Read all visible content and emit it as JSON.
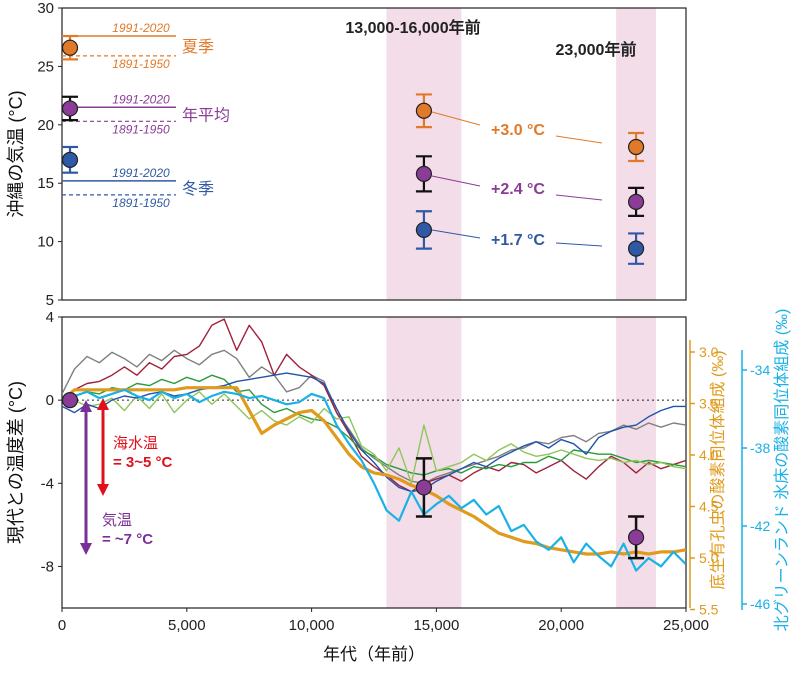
{
  "colors": {
    "summer": "#e07a2a",
    "annual": "#8a3c96",
    "winter": "#2f59a6",
    "shade": "#f3dde8",
    "gold": "#e09a1c",
    "cyan": "#1ab1e6",
    "red": "#e0101c",
    "purple_arrow": "#7a2f96"
  },
  "chart_data": [
    {
      "type": "scatter",
      "ylabel": "沖縄の気温 (°C)",
      "ylim": [
        5,
        30
      ],
      "yticks": [
        "5",
        "10",
        "15",
        "20",
        "25",
        "30"
      ],
      "shaded_periods": [
        {
          "label": "13,000-16,000年前",
          "x_range": [
            13000,
            16000
          ]
        },
        {
          "label": "23,000年前",
          "x_range": [
            22200,
            23800
          ]
        }
      ],
      "reference_lines": [
        {
          "season": "夏季",
          "y_1991_2020": 27.6,
          "y_1891_1950": 25.9
        },
        {
          "season": "年平均",
          "y_1991_2020": 21.5,
          "y_1891_1950": 20.3
        },
        {
          "season": "冬季",
          "y_1991_2020": 15.2,
          "y_1891_1950": 14.0
        }
      ],
      "period_labels": {
        "recent": "1991-2020",
        "old": "1891-1950"
      },
      "series": [
        {
          "name": "夏季",
          "color_key": "summer",
          "points": [
            {
              "x": 0,
              "y": 26.6,
              "err": 1.0
            },
            {
              "x": 14500,
              "y": 21.2,
              "err": 1.4
            },
            {
              "x": 23000,
              "y": 18.1,
              "err": 1.2
            }
          ]
        },
        {
          "name": "年平均",
          "color_key": "annual",
          "points": [
            {
              "x": 0,
              "y": 21.4,
              "err": 1.0
            },
            {
              "x": 14500,
              "y": 15.8,
              "err": 1.5
            },
            {
              "x": 23000,
              "y": 13.4,
              "err": 1.2
            }
          ]
        },
        {
          "name": "冬季",
          "color_key": "winter",
          "points": [
            {
              "x": 0,
              "y": 17.0,
              "err": 1.1
            },
            {
              "x": 14500,
              "y": 11.0,
              "err": 1.6
            },
            {
              "x": 23000,
              "y": 9.4,
              "err": 1.3
            }
          ]
        }
      ],
      "annotations": [
        {
          "text": "+3.0 °C",
          "color_key": "summer"
        },
        {
          "text": "+2.4 °C",
          "color_key": "annual"
        },
        {
          "text": "+1.7 °C",
          "color_key": "winter"
        }
      ]
    },
    {
      "type": "line",
      "xlabel": "年代（年前）",
      "ylabel": "現代との温度差 (°C)",
      "xlim": [
        0,
        25000
      ],
      "ylim": [
        -10,
        4
      ],
      "xticks": [
        "0",
        "5,000",
        "10,000",
        "15,000",
        "20,000",
        "25,000"
      ],
      "yticks": [
        "4",
        "0",
        "-4",
        "-8"
      ],
      "right_axis_1": {
        "label": "底生有孔虫の酸素同位体組成 (‰)",
        "ticks": [
          "3.0",
          "3.5",
          "4.0",
          "4.5",
          "5.0",
          "5.5"
        ]
      },
      "right_axis_2": {
        "label": "北グリーンランド 氷床の酸素同位体組成 (‰)",
        "ticks": [
          "-34",
          "-38",
          "-42",
          "-46"
        ]
      },
      "series": [
        {
          "name": "",
          "color": "#808080",
          "x": [
            0,
            500,
            1000,
            1500,
            2000,
            2500,
            3000,
            3500,
            4000,
            4500,
            5000,
            5500,
            6000,
            6500,
            7000,
            7500,
            8000,
            8500,
            9000,
            9500,
            10000,
            10500,
            11000,
            11500,
            12000,
            12500,
            13000,
            13500,
            14000,
            14500,
            15000,
            15500,
            16000,
            16500,
            17000,
            17500,
            18000,
            18500,
            19000,
            19500,
            20000,
            20500,
            21000,
            21500,
            22000,
            22500,
            23000,
            23500,
            24000,
            24500,
            25000
          ],
          "y": [
            0.3,
            1.5,
            2.1,
            1.8,
            2.3,
            2.0,
            1.6,
            2.2,
            1.9,
            2.4,
            2.0,
            1.7,
            2.2,
            2.4,
            2.0,
            1.1,
            1.6,
            1.2,
            0.4,
            0.6,
            1.2,
            0.9,
            -0.6,
            -1.4,
            -2.3,
            -2.8,
            -3.2,
            -3.6,
            -3.9,
            -4.0,
            -3.7,
            -3.5,
            -3.3,
            -3.1,
            -2.9,
            -2.7,
            -2.4,
            -2.3,
            -2.0,
            -2.1,
            -1.8,
            -1.7,
            -2.0,
            -1.6,
            -1.5,
            -1.2,
            -1.4,
            -1.1,
            -1.3,
            -1.1,
            -1.2
          ]
        },
        {
          "name": "",
          "color": "#a0213c",
          "x": [
            0,
            500,
            1000,
            1500,
            2000,
            2500,
            3000,
            3500,
            4000,
            4500,
            5000,
            5500,
            6000,
            6500,
            7000,
            7500,
            8000,
            8500,
            9000,
            9500,
            10000,
            10500,
            11000,
            11500,
            12000,
            12500,
            13000,
            13500,
            14000,
            14500,
            15000,
            15500,
            16000,
            16500,
            17000,
            17500,
            18000,
            18500,
            19000,
            19500,
            20000,
            20500,
            21000,
            21500,
            22000,
            22500,
            23000,
            23500,
            24000,
            24500,
            25000
          ],
          "y": [
            0.0,
            0.5,
            0.8,
            0.9,
            1.2,
            1.6,
            1.2,
            1.8,
            1.5,
            2.1,
            2.2,
            2.6,
            3.6,
            3.9,
            2.4,
            3.6,
            2.8,
            1.2,
            2.2,
            1.6,
            1.2,
            0.7,
            -0.6,
            -1.6,
            -2.7,
            -3.2,
            -3.6,
            -4.1,
            -4.4,
            -4.0,
            -3.8,
            -3.6,
            -3.9,
            -3.5,
            -3.2,
            -3.4,
            -3.0,
            -3.1,
            -3.5,
            -3.2,
            -2.9,
            -3.4,
            -3.8,
            -3.2,
            -2.7,
            -3.0,
            -3.5,
            -3.0,
            -3.3,
            -3.1,
            -2.9
          ]
        },
        {
          "name": "",
          "color": "#2a9a3c",
          "x": [
            0,
            500,
            1000,
            1500,
            2000,
            2500,
            3000,
            3500,
            4000,
            4500,
            5000,
            5500,
            6000,
            6500,
            7000,
            7500,
            8000,
            8500,
            9000,
            9500,
            10000,
            10500,
            11000,
            11500,
            12000,
            12500,
            13000,
            13500,
            14000,
            14500,
            15000,
            15500,
            16000,
            16500,
            17000,
            17500,
            18000,
            18500,
            19000,
            19500,
            20000,
            20500,
            21000,
            21500,
            22000,
            22500,
            23000,
            23500,
            24000,
            24500,
            25000
          ],
          "y": [
            0.0,
            0.2,
            0.4,
            0.3,
            0.6,
            0.5,
            0.8,
            0.7,
            1.0,
            0.8,
            1.1,
            0.9,
            1.2,
            1.0,
            0.4,
            0.5,
            -0.2,
            -0.6,
            -0.4,
            -0.7,
            -0.9,
            -1.0,
            -1.3,
            -1.8,
            -2.4,
            -2.7,
            -3.1,
            -3.3,
            -3.5,
            -3.6,
            -3.4,
            -3.3,
            -3.5,
            -3.2,
            -3.3,
            -3.1,
            -3.2,
            -3.0,
            -3.0,
            -2.7,
            -2.9,
            -2.4,
            -2.5,
            -2.6,
            -2.6,
            -2.8,
            -3.0,
            -2.9,
            -3.0,
            -3.1,
            -3.2
          ]
        },
        {
          "name": "",
          "color": "#8fc65a",
          "x": [
            0,
            500,
            1000,
            1500,
            2000,
            2500,
            3000,
            3500,
            4000,
            4500,
            5000,
            5500,
            6000,
            6500,
            7000,
            7500,
            8000,
            8500,
            9000,
            9500,
            10000,
            10500,
            11000,
            11500,
            12000,
            12500,
            13000,
            13500,
            14000,
            14500,
            15000,
            15500,
            16000,
            16500,
            17000,
            17500,
            18000,
            18500,
            19000,
            19500,
            20000,
            20500,
            21000,
            21500,
            22000,
            22500,
            23000,
            23500,
            24000,
            24500,
            25000
          ],
          "y": [
            0.0,
            0.0,
            -0.3,
            -0.2,
            0.1,
            -0.5,
            0.2,
            -0.4,
            0.3,
            -0.6,
            0.0,
            0.4,
            -0.2,
            0.3,
            -0.3,
            -0.9,
            -0.5,
            -1.0,
            -1.2,
            -0.8,
            -1.1,
            -0.4,
            -0.9,
            -0.8,
            -2.2,
            -2.6,
            -3.4,
            -2.3,
            -4.0,
            -1.2,
            -3.4,
            -3.2,
            -3.0,
            -2.6,
            -2.9,
            -2.4,
            -2.1,
            -2.5,
            -2.7,
            -2.6,
            -2.4,
            -2.6,
            -2.8,
            -2.9,
            -2.8,
            -3.0,
            -2.9,
            -3.1,
            -3.0,
            -3.2,
            -3.3
          ]
        },
        {
          "name": "",
          "color": "#1f55a8",
          "x": [
            0,
            500,
            1000,
            1500,
            2000,
            2500,
            3000,
            3500,
            4000,
            4500,
            5000,
            5500,
            6000,
            6500,
            7000,
            7500,
            8000,
            8500,
            9000,
            9500,
            10000,
            10500,
            11000,
            11500,
            12000,
            12500,
            13000,
            13500,
            14000,
            14500,
            15000,
            15500,
            16000,
            16500,
            17000,
            17500,
            18000,
            18500,
            19000,
            19500,
            20000,
            20500,
            21000,
            21500,
            22000,
            22500,
            23000,
            23500,
            24000,
            24500,
            25000
          ],
          "y": [
            -0.3,
            -0.6,
            -0.2,
            -0.4,
            0.0,
            0.2,
            0.1,
            0.3,
            0.4,
            0.2,
            0.3,
            0.5,
            0.6,
            0.7,
            0.9,
            1.0,
            1.1,
            1.2,
            1.3,
            1.2,
            1.1,
            0.8,
            -0.4,
            -1.5,
            -2.4,
            -3.0,
            -3.7,
            -4.2,
            -4.4,
            -4.3,
            -3.9,
            -3.6,
            -3.3,
            -3.0,
            -3.2,
            -2.8,
            -2.5,
            -2.2,
            -2.0,
            -2.3,
            -1.9,
            -2.1,
            -2.6,
            -1.8,
            -1.5,
            -1.3,
            -1.2,
            -0.8,
            -0.5,
            -0.3,
            -0.3
          ]
        },
        {
          "name": "",
          "color": "#e09a1c",
          "x": [
            0,
            500,
            1000,
            1500,
            2000,
            2500,
            3000,
            3500,
            4000,
            4500,
            5000,
            5500,
            6000,
            6500,
            7000,
            7500,
            8000,
            8500,
            9000,
            9500,
            10000,
            10500,
            11000,
            11500,
            12000,
            12500,
            13000,
            13500,
            14000,
            14500,
            15000,
            15500,
            16000,
            16500,
            17000,
            17500,
            18000,
            18500,
            19000,
            19500,
            20000,
            20500,
            21000,
            21500,
            22000,
            22500,
            23000,
            23500,
            24000,
            24500,
            25000
          ],
          "y": [
            0.0,
            0.5,
            0.5,
            0.5,
            0.5,
            0.5,
            0.5,
            0.5,
            0.5,
            0.5,
            0.6,
            0.6,
            0.6,
            0.6,
            0.6,
            -0.5,
            -1.6,
            -1.2,
            -0.9,
            -0.6,
            -0.5,
            -1.0,
            -1.8,
            -2.6,
            -3.2,
            -3.5,
            -3.6,
            -3.8,
            -4.1,
            -4.3,
            -4.6,
            -5.0,
            -5.3,
            -5.6,
            -6.0,
            -6.4,
            -6.6,
            -6.8,
            -6.9,
            -7.1,
            -7.2,
            -7.3,
            -7.4,
            -7.4,
            -7.3,
            -7.4,
            -7.3,
            -7.4,
            -7.3,
            -7.3,
            -7.2
          ]
        },
        {
          "name": "",
          "color": "#1ab1e6",
          "x": [
            0,
            500,
            1000,
            1500,
            2000,
            2500,
            3000,
            3500,
            4000,
            4500,
            5000,
            5500,
            6000,
            6500,
            7000,
            7500,
            8000,
            8500,
            9000,
            9500,
            10000,
            10500,
            11000,
            11500,
            12000,
            12500,
            13000,
            13500,
            14000,
            14500,
            15000,
            15500,
            16000,
            16500,
            17000,
            17500,
            18000,
            18500,
            19000,
            19500,
            20000,
            20500,
            21000,
            21500,
            22000,
            22500,
            23000,
            23500,
            24000,
            24500,
            25000
          ],
          "y": [
            0.0,
            0.2,
            0.4,
            0.1,
            0.3,
            0.5,
            0.2,
            0.0,
            0.4,
            0.1,
            0.3,
            -0.1,
            0.2,
            0.4,
            0.3,
            0.1,
            0.2,
            0.0,
            -0.2,
            -0.1,
            0.3,
            0.1,
            -1.2,
            -2.1,
            -2.9,
            -4.0,
            -5.3,
            -5.8,
            -4.4,
            -5.5,
            -5.0,
            -4.6,
            -5.2,
            -4.8,
            -5.5,
            -5.1,
            -6.3,
            -6.0,
            -6.8,
            -7.2,
            -6.6,
            -7.8,
            -6.9,
            -7.5,
            -8.0,
            -6.9,
            -8.2,
            -7.6,
            -8.0,
            -7.3,
            -7.9
          ]
        }
      ],
      "scatter_points": [
        {
          "x": 0,
          "y": 0.0,
          "err": 0.0
        },
        {
          "x": 14500,
          "y": -4.2,
          "err": 1.4
        },
        {
          "x": 23000,
          "y": -6.6,
          "err": 1.0
        }
      ],
      "annotations": [
        {
          "text": "海水温",
          "color_key": "red"
        },
        {
          "text": "= 3~5 °C",
          "color_key": "red"
        },
        {
          "text": "気温",
          "color_key": "purple_arrow"
        },
        {
          "text": "= ~7 °C",
          "color_key": "purple_arrow"
        }
      ]
    }
  ]
}
